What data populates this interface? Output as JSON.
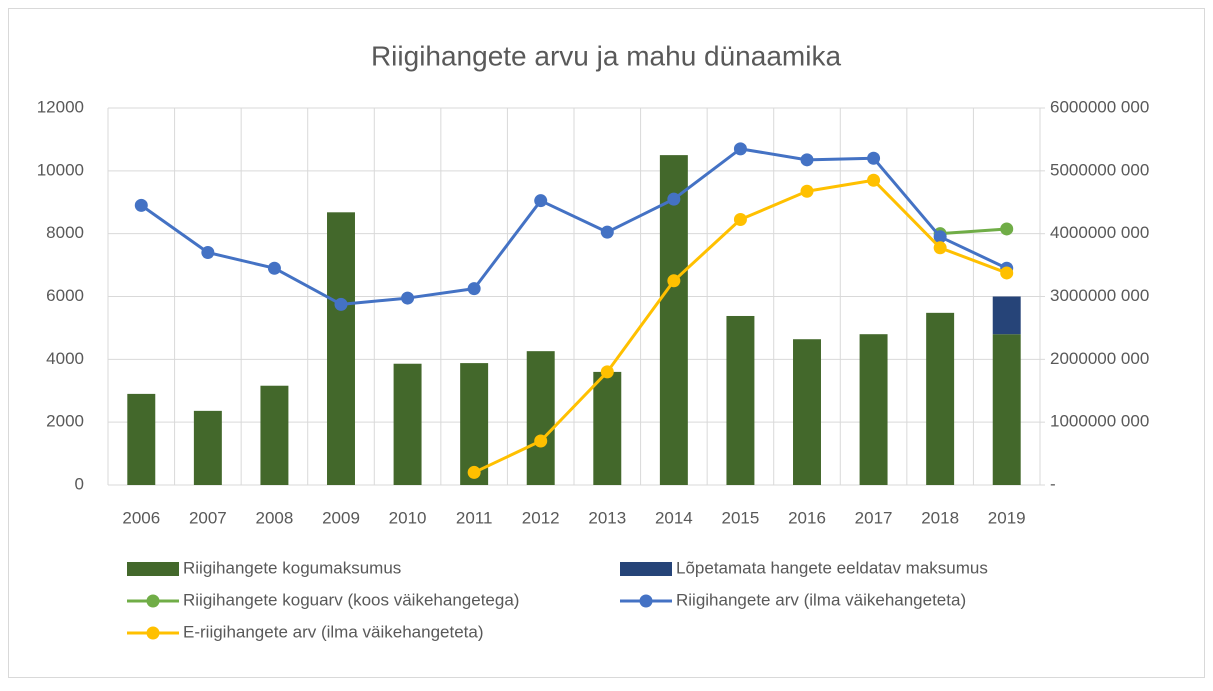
{
  "chart_data": {
    "type": "combo",
    "title": "Riigihangete arvu ja mahu dünaamika",
    "categories": [
      "2006",
      "2007",
      "2008",
      "2009",
      "2010",
      "2011",
      "2012",
      "2013",
      "2014",
      "2015",
      "2016",
      "2017",
      "2018",
      "2019"
    ],
    "stacked": true,
    "grid": true,
    "ylim": [
      0,
      12000
    ],
    "yticks": [
      0,
      2000,
      4000,
      6000,
      8000,
      10000,
      12000
    ],
    "y2lim": [
      0,
      6000000000
    ],
    "y2ticks": [
      {
        "value": 0,
        "label": "-"
      },
      {
        "value": 1000000000,
        "label": "1000000 000"
      },
      {
        "value": 2000000000,
        "label": "2000000 000"
      },
      {
        "value": 3000000000,
        "label": "3000000 000"
      },
      {
        "value": 4000000000,
        "label": "4000000 000"
      },
      {
        "value": 5000000000,
        "label": "5000000 000"
      },
      {
        "value": 6000000000,
        "label": "6000000 000"
      }
    ],
    "series": [
      {
        "name": "Riigihangete kogumaksumus",
        "type": "bar",
        "axis": "y2",
        "color": "#43682b",
        "values": [
          1450000000,
          1180000000,
          1580000000,
          4340000000,
          1930000000,
          1940000000,
          2130000000,
          1800000000,
          5250000000,
          2690000000,
          2320000000,
          2400000000,
          2740000000,
          2400000000
        ]
      },
      {
        "name": "Lõpetamata hangete eeldatav maksumus",
        "type": "bar",
        "axis": "y2",
        "color": "#264478",
        "values": [
          null,
          null,
          null,
          null,
          null,
          null,
          null,
          null,
          null,
          null,
          null,
          null,
          null,
          600000000
        ]
      },
      {
        "name": "Riigihangete koguarv (koos väikehangetega)",
        "type": "line",
        "axis": "y",
        "color": "#70ad47",
        "values": [
          null,
          null,
          null,
          null,
          null,
          null,
          null,
          null,
          null,
          null,
          null,
          null,
          8000,
          8150
        ]
      },
      {
        "name": "Riigihangete arv (ilma väikehangeteta)",
        "type": "line",
        "axis": "y",
        "color": "#4472c4",
        "values": [
          8900,
          7400,
          6900,
          5750,
          5950,
          6250,
          9050,
          8050,
          9100,
          10700,
          10350,
          10400,
          7900,
          6900
        ]
      },
      {
        "name": "E-riigihangete arv (ilma väikehangeteta)",
        "type": "line",
        "axis": "y",
        "color": "#ffc000",
        "values": [
          null,
          null,
          null,
          null,
          null,
          400,
          1400,
          3600,
          6500,
          8450,
          9350,
          9700,
          7550,
          6750
        ]
      }
    ]
  }
}
